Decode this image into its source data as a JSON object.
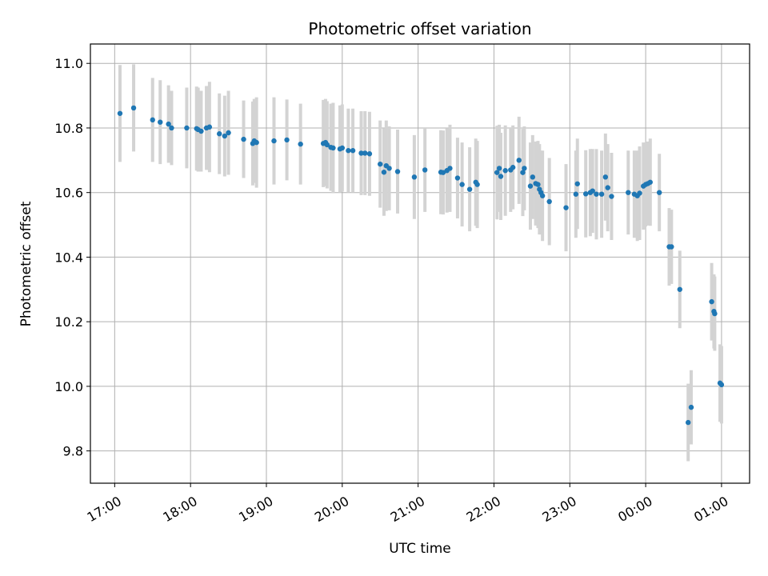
{
  "chart_data": {
    "type": "scatter",
    "title": "Photometric offset variation",
    "xlabel": "UTC time",
    "ylabel": "Photometric offset",
    "x_tick_labels": [
      "17:00",
      "18:00",
      "19:00",
      "20:00",
      "21:00",
      "22:00",
      "23:00",
      "00:00",
      "01:00"
    ],
    "x_tick_values_hours": [
      17,
      18,
      19,
      20,
      21,
      22,
      23,
      24,
      25
    ],
    "y_tick_labels": [
      "9.8",
      "10.0",
      "10.2",
      "10.4",
      "10.6",
      "10.8",
      "11.0"
    ],
    "y_tick_values": [
      9.8,
      10.0,
      10.2,
      10.4,
      10.6,
      10.8,
      11.0
    ],
    "xlim_hours": [
      16.68,
      25.37
    ],
    "ylim": [
      9.7,
      11.06
    ],
    "grid": true,
    "marker_color": "#1f77b4",
    "errorbar_color": "#d3d3d3",
    "x_unit": "hours after 00:00 UTC of the first day (values >= 24 are on the next day)",
    "points": [
      {
        "x": 17.07,
        "y": 10.845,
        "err": 0.15
      },
      {
        "x": 17.25,
        "y": 10.862,
        "err": 0.135
      },
      {
        "x": 17.5,
        "y": 10.825,
        "err": 0.13
      },
      {
        "x": 17.6,
        "y": 10.818,
        "err": 0.13
      },
      {
        "x": 17.71,
        "y": 10.812,
        "err": 0.12
      },
      {
        "x": 17.75,
        "y": 10.8,
        "err": 0.115
      },
      {
        "x": 17.95,
        "y": 10.8,
        "err": 0.125
      },
      {
        "x": 18.08,
        "y": 10.798,
        "err": 0.13
      },
      {
        "x": 18.1,
        "y": 10.795,
        "err": 0.13
      },
      {
        "x": 18.14,
        "y": 10.79,
        "err": 0.125
      },
      {
        "x": 18.21,
        "y": 10.8,
        "err": 0.13
      },
      {
        "x": 18.25,
        "y": 10.803,
        "err": 0.14
      },
      {
        "x": 18.38,
        "y": 10.782,
        "err": 0.125
      },
      {
        "x": 18.45,
        "y": 10.775,
        "err": 0.125
      },
      {
        "x": 18.5,
        "y": 10.785,
        "err": 0.13
      },
      {
        "x": 18.7,
        "y": 10.765,
        "err": 0.12
      },
      {
        "x": 18.82,
        "y": 10.752,
        "err": 0.13
      },
      {
        "x": 18.84,
        "y": 10.76,
        "err": 0.13
      },
      {
        "x": 18.87,
        "y": 10.755,
        "err": 0.14
      },
      {
        "x": 19.1,
        "y": 10.76,
        "err": 0.135
      },
      {
        "x": 19.27,
        "y": 10.763,
        "err": 0.125
      },
      {
        "x": 19.45,
        "y": 10.75,
        "err": 0.125
      },
      {
        "x": 19.75,
        "y": 10.752,
        "err": 0.135
      },
      {
        "x": 19.78,
        "y": 10.755,
        "err": 0.135
      },
      {
        "x": 19.8,
        "y": 10.748,
        "err": 0.135
      },
      {
        "x": 19.85,
        "y": 10.74,
        "err": 0.135
      },
      {
        "x": 19.88,
        "y": 10.738,
        "err": 0.14
      },
      {
        "x": 19.97,
        "y": 10.735,
        "err": 0.135
      },
      {
        "x": 20.0,
        "y": 10.738,
        "err": 0.135
      },
      {
        "x": 20.08,
        "y": 10.73,
        "err": 0.13
      },
      {
        "x": 20.14,
        "y": 10.73,
        "err": 0.13
      },
      {
        "x": 20.25,
        "y": 10.722,
        "err": 0.13
      },
      {
        "x": 20.3,
        "y": 10.722,
        "err": 0.13
      },
      {
        "x": 20.36,
        "y": 10.72,
        "err": 0.13
      },
      {
        "x": 20.5,
        "y": 10.688,
        "err": 0.135
      },
      {
        "x": 20.55,
        "y": 10.663,
        "err": 0.135
      },
      {
        "x": 20.58,
        "y": 10.683,
        "err": 0.14
      },
      {
        "x": 20.62,
        "y": 10.675,
        "err": 0.13
      },
      {
        "x": 20.73,
        "y": 10.665,
        "err": 0.13
      },
      {
        "x": 20.95,
        "y": 10.648,
        "err": 0.13
      },
      {
        "x": 21.09,
        "y": 10.67,
        "err": 0.13
      },
      {
        "x": 21.3,
        "y": 10.663,
        "err": 0.13
      },
      {
        "x": 21.33,
        "y": 10.662,
        "err": 0.13
      },
      {
        "x": 21.38,
        "y": 10.668,
        "err": 0.13
      },
      {
        "x": 21.42,
        "y": 10.675,
        "err": 0.135
      },
      {
        "x": 21.52,
        "y": 10.645,
        "err": 0.125
      },
      {
        "x": 21.58,
        "y": 10.625,
        "err": 0.13
      },
      {
        "x": 21.68,
        "y": 10.61,
        "err": 0.13
      },
      {
        "x": 21.76,
        "y": 10.632,
        "err": 0.135
      },
      {
        "x": 21.78,
        "y": 10.625,
        "err": 0.135
      },
      {
        "x": 22.04,
        "y": 10.662,
        "err": 0.145
      },
      {
        "x": 22.07,
        "y": 10.675,
        "err": 0.135
      },
      {
        "x": 22.09,
        "y": 10.65,
        "err": 0.135
      },
      {
        "x": 22.15,
        "y": 10.668,
        "err": 0.14
      },
      {
        "x": 22.22,
        "y": 10.67,
        "err": 0.13
      },
      {
        "x": 22.25,
        "y": 10.678,
        "err": 0.13
      },
      {
        "x": 22.33,
        "y": 10.7,
        "err": 0.135
      },
      {
        "x": 22.38,
        "y": 10.662,
        "err": 0.135
      },
      {
        "x": 22.4,
        "y": 10.675,
        "err": 0.13
      },
      {
        "x": 22.48,
        "y": 10.62,
        "err": 0.135
      },
      {
        "x": 22.51,
        "y": 10.648,
        "err": 0.13
      },
      {
        "x": 22.55,
        "y": 10.628,
        "err": 0.13
      },
      {
        "x": 22.58,
        "y": 10.625,
        "err": 0.135
      },
      {
        "x": 22.6,
        "y": 10.61,
        "err": 0.14
      },
      {
        "x": 22.62,
        "y": 10.6,
        "err": 0.13
      },
      {
        "x": 22.64,
        "y": 10.59,
        "err": 0.14
      },
      {
        "x": 22.73,
        "y": 10.572,
        "err": 0.135
      },
      {
        "x": 22.95,
        "y": 10.553,
        "err": 0.135
      },
      {
        "x": 23.08,
        "y": 10.595,
        "err": 0.135
      },
      {
        "x": 23.1,
        "y": 10.627,
        "err": 0.14
      },
      {
        "x": 23.21,
        "y": 10.596,
        "err": 0.135
      },
      {
        "x": 23.27,
        "y": 10.6,
        "err": 0.135
      },
      {
        "x": 23.3,
        "y": 10.605,
        "err": 0.13
      },
      {
        "x": 23.35,
        "y": 10.595,
        "err": 0.14
      },
      {
        "x": 23.42,
        "y": 10.595,
        "err": 0.135
      },
      {
        "x": 23.47,
        "y": 10.648,
        "err": 0.135
      },
      {
        "x": 23.5,
        "y": 10.615,
        "err": 0.135
      },
      {
        "x": 23.55,
        "y": 10.588,
        "err": 0.135
      },
      {
        "x": 23.77,
        "y": 10.6,
        "err": 0.13
      },
      {
        "x": 23.85,
        "y": 10.595,
        "err": 0.135
      },
      {
        "x": 23.89,
        "y": 10.59,
        "err": 0.14
      },
      {
        "x": 23.92,
        "y": 10.598,
        "err": 0.145
      },
      {
        "x": 23.97,
        "y": 10.62,
        "err": 0.135
      },
      {
        "x": 24.0,
        "y": 10.625,
        "err": 0.13
      },
      {
        "x": 24.03,
        "y": 10.628,
        "err": 0.13
      },
      {
        "x": 24.06,
        "y": 10.632,
        "err": 0.135
      },
      {
        "x": 24.18,
        "y": 10.6,
        "err": 0.12
      },
      {
        "x": 24.31,
        "y": 10.432,
        "err": 0.12
      },
      {
        "x": 24.34,
        "y": 10.432,
        "err": 0.115
      },
      {
        "x": 24.45,
        "y": 10.3,
        "err": 0.12
      },
      {
        "x": 24.56,
        "y": 9.888,
        "err": 0.12
      },
      {
        "x": 24.6,
        "y": 9.935,
        "err": 0.115
      },
      {
        "x": 24.87,
        "y": 10.262,
        "err": 0.12
      },
      {
        "x": 24.9,
        "y": 10.232,
        "err": 0.115
      },
      {
        "x": 24.91,
        "y": 10.225,
        "err": 0.115
      },
      {
        "x": 24.98,
        "y": 10.01,
        "err": 0.12
      },
      {
        "x": 25.0,
        "y": 10.005,
        "err": 0.12
      }
    ]
  }
}
